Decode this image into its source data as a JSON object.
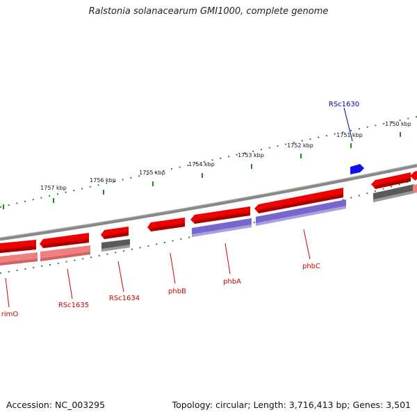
{
  "title": "Ralstonia solanacearum GMI1000, complete genome",
  "footer": {
    "accession": "Accession: NC_003295",
    "topology": "Topology: circular; Length: 3,716,413 bp; Genes: 3,501"
  },
  "colors": {
    "cds": "#ee0000",
    "cds_light": "#f08080",
    "gene_grey": "#5a5a5a",
    "gene_purple": "#7766cc",
    "highlight": "#1010ee",
    "label_red": "#cc0000",
    "label_blue": "#0000aa",
    "ruler": "#228822",
    "backbone": "#888888"
  },
  "ruler": {
    "labels": [
      "1757 kbp",
      "1756 kbp",
      "1755 kbp",
      "1754 kbp",
      "1753 kbp",
      "1752 kbp",
      "1751 kbp",
      "1750 kbp"
    ]
  },
  "genes": {
    "rimO": "rimO",
    "RSc1635": "RSc1635",
    "RSc1634": "RSc1634",
    "phbB": "phbB",
    "phbA": "phbA",
    "phbC": "phbC",
    "RSc1630": "RSc1630"
  }
}
